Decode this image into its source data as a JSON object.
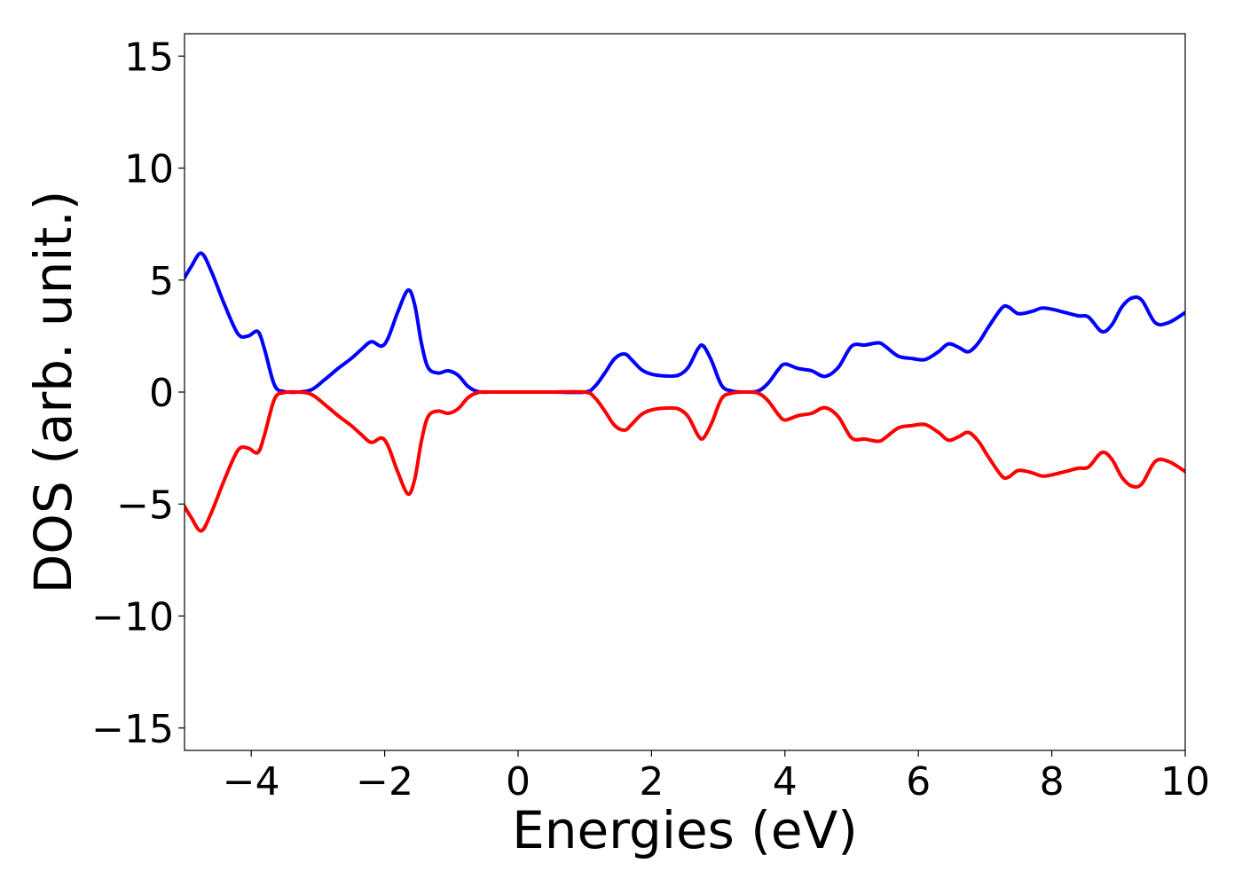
{
  "chart_data": {
    "type": "line",
    "title": "",
    "xlabel": "Energies (eV)",
    "ylabel": "DOS (arb. unit.)",
    "xlim": [
      -5,
      10
    ],
    "ylim": [
      -16,
      16
    ],
    "xticks": [
      -4,
      -2,
      0,
      2,
      4,
      6,
      8,
      10
    ],
    "xtick_labels": [
      "−4",
      "−2",
      "0",
      "2",
      "4",
      "6",
      "8",
      "10"
    ],
    "yticks": [
      -15,
      -10,
      -5,
      0,
      5,
      10,
      15
    ],
    "ytick_labels": [
      "−15",
      "−10",
      "−5",
      "0",
      "5",
      "10",
      "15"
    ],
    "grid": false,
    "legend": false,
    "series": [
      {
        "color": "#0000ff",
        "x": [
          -5.0,
          -4.9,
          -4.75,
          -4.6,
          -4.4,
          -4.2,
          -4.05,
          -3.9,
          -3.8,
          -3.65,
          -3.5,
          -3.3,
          -3.1,
          -2.9,
          -2.7,
          -2.5,
          -2.35,
          -2.2,
          -2.05,
          -1.95,
          -1.8,
          -1.65,
          -1.55,
          -1.45,
          -1.35,
          -1.2,
          -1.05,
          -0.9,
          -0.75,
          -0.6,
          -0.4,
          0.0,
          0.5,
          1.0,
          1.15,
          1.3,
          1.45,
          1.6,
          1.7,
          1.85,
          2.0,
          2.2,
          2.4,
          2.55,
          2.7,
          2.78,
          2.9,
          3.05,
          3.2,
          3.4,
          3.6,
          3.75,
          3.9,
          4.0,
          4.2,
          4.4,
          4.6,
          4.8,
          5.0,
          5.2,
          5.4,
          5.5,
          5.7,
          5.9,
          6.1,
          6.3,
          6.45,
          6.6,
          6.75,
          6.9,
          7.05,
          7.25,
          7.35,
          7.5,
          7.7,
          7.85,
          8.0,
          8.2,
          8.4,
          8.55,
          8.75,
          8.9,
          9.05,
          9.2,
          9.35,
          9.55,
          9.75,
          10.0
        ],
        "y": [
          5.1,
          5.6,
          6.2,
          5.4,
          3.9,
          2.6,
          2.5,
          2.7,
          1.9,
          0.3,
          0.02,
          0.0,
          0.1,
          0.55,
          1.05,
          1.5,
          1.9,
          2.25,
          2.05,
          2.4,
          3.6,
          4.55,
          3.9,
          2.2,
          1.1,
          0.85,
          0.95,
          0.75,
          0.25,
          0.02,
          0.0,
          0.0,
          0.0,
          0.0,
          0.25,
          0.85,
          1.5,
          1.7,
          1.45,
          1.0,
          0.8,
          0.72,
          0.75,
          1.1,
          1.95,
          2.05,
          1.4,
          0.3,
          0.05,
          0.0,
          0.05,
          0.4,
          1.0,
          1.25,
          1.05,
          0.95,
          0.7,
          1.1,
          2.05,
          2.1,
          2.2,
          2.05,
          1.6,
          1.5,
          1.45,
          1.8,
          2.15,
          2.0,
          1.8,
          2.2,
          2.9,
          3.75,
          3.8,
          3.5,
          3.6,
          3.75,
          3.7,
          3.55,
          3.4,
          3.35,
          2.7,
          3.0,
          3.8,
          4.2,
          4.1,
          3.1,
          3.1,
          3.55
        ]
      },
      {
        "color": "#ff0000",
        "x": [
          -5.0,
          -4.9,
          -4.75,
          -4.6,
          -4.4,
          -4.2,
          -4.05,
          -3.9,
          -3.8,
          -3.65,
          -3.5,
          -3.3,
          -3.1,
          -2.9,
          -2.7,
          -2.5,
          -2.35,
          -2.2,
          -2.05,
          -1.95,
          -1.8,
          -1.65,
          -1.55,
          -1.45,
          -1.35,
          -1.2,
          -1.05,
          -0.9,
          -0.75,
          -0.6,
          -0.4,
          0.0,
          0.5,
          1.0,
          1.15,
          1.3,
          1.45,
          1.6,
          1.7,
          1.85,
          2.0,
          2.2,
          2.4,
          2.55,
          2.7,
          2.78,
          2.9,
          3.05,
          3.2,
          3.4,
          3.6,
          3.75,
          3.9,
          4.0,
          4.2,
          4.4,
          4.6,
          4.8,
          5.0,
          5.2,
          5.4,
          5.5,
          5.7,
          5.9,
          6.1,
          6.3,
          6.45,
          6.6,
          6.75,
          6.9,
          7.05,
          7.25,
          7.35,
          7.5,
          7.7,
          7.85,
          8.0,
          8.2,
          8.4,
          8.55,
          8.75,
          8.9,
          9.05,
          9.2,
          9.35,
          9.55,
          9.75,
          10.0
        ],
        "y": [
          -5.1,
          -5.6,
          -6.2,
          -5.4,
          -3.9,
          -2.6,
          -2.5,
          -2.7,
          -1.9,
          -0.3,
          -0.02,
          0.0,
          -0.1,
          -0.55,
          -1.05,
          -1.5,
          -1.9,
          -2.25,
          -2.05,
          -2.4,
          -3.6,
          -4.55,
          -3.9,
          -2.2,
          -1.1,
          -0.85,
          -0.95,
          -0.75,
          -0.25,
          -0.02,
          0.0,
          0.0,
          0.0,
          0.0,
          -0.25,
          -0.85,
          -1.5,
          -1.7,
          -1.45,
          -1.0,
          -0.8,
          -0.72,
          -0.75,
          -1.1,
          -1.95,
          -2.05,
          -1.4,
          -0.3,
          -0.05,
          0.0,
          -0.05,
          -0.4,
          -1.0,
          -1.25,
          -1.05,
          -0.95,
          -0.7,
          -1.1,
          -2.05,
          -2.1,
          -2.2,
          -2.05,
          -1.6,
          -1.5,
          -1.45,
          -1.8,
          -2.15,
          -2.0,
          -1.8,
          -2.2,
          -2.9,
          -3.75,
          -3.8,
          -3.5,
          -3.6,
          -3.75,
          -3.7,
          -3.55,
          -3.4,
          -3.35,
          -2.7,
          -3.0,
          -3.8,
          -4.2,
          -4.1,
          -3.1,
          -3.1,
          -3.55
        ]
      }
    ]
  }
}
